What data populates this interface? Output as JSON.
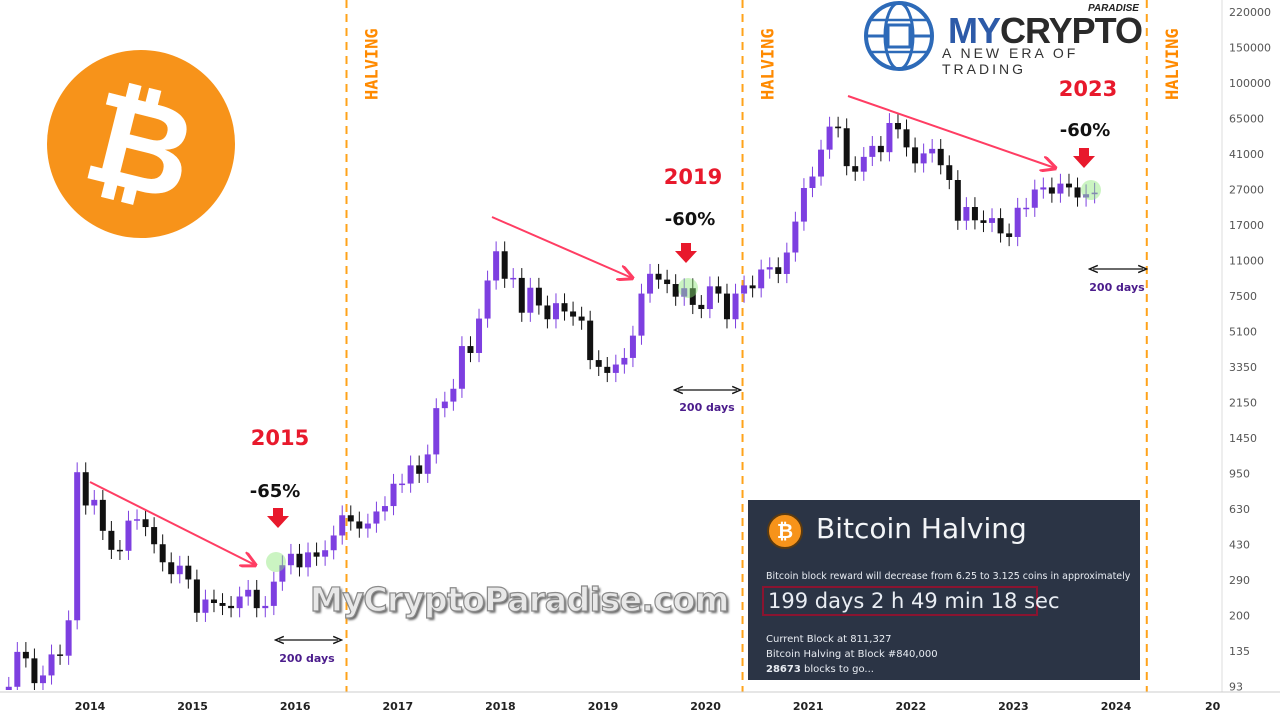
{
  "chart_data": {
    "type": "candlestick",
    "title": "",
    "y_scale": "log",
    "ylim": [
      93,
      220000
    ],
    "y_ticks": [
      "220000",
      "150000",
      "100000",
      "65000",
      "41000",
      "27000",
      "17000",
      "11000",
      "7500",
      "5100",
      "3350",
      "2150",
      "1450",
      "950",
      "630",
      "430",
      "290",
      "200",
      "135",
      "93"
    ],
    "x_ticks": [
      "2014",
      "2015",
      "2016",
      "2017",
      "2018",
      "2019",
      "2020",
      "2021",
      "2022",
      "2023",
      "2024",
      "20"
    ],
    "colors": {
      "up": "#7d3fe0",
      "down": "#111111",
      "halving_line": "#ffa31a",
      "trend_arrow": "#ff3d63",
      "drop_arrow": "#e8192c"
    },
    "series_start": "2013-03",
    "interval": "monthly",
    "closes": [
      93,
      139,
      129,
      97,
      106,
      135,
      133,
      200,
      1100,
      750,
      800,
      560,
      450,
      445,
      630,
      640,
      585,
      480,
      390,
      340,
      375,
      320,
      218,
      254,
      244,
      236,
      230,
      263,
      284,
      230,
      236,
      312,
      377,
      430,
      368,
      437,
      416,
      448,
      531,
      670,
      624,
      575,
      609,
      700,
      745,
      963,
      965,
      1190,
      1080,
      1350,
      2300,
      2480,
      2875,
      4700,
      4340,
      6450,
      10000,
      14000,
      10200,
      10300,
      6900,
      9200,
      7500,
      6400,
      7700,
      7000,
      6600,
      6300,
      4000,
      3700,
      3450,
      3800,
      4100,
      5300,
      8600,
      10800,
      10100,
      9600,
      8300,
      9150,
      7550,
      7200,
      9350,
      8600,
      6400,
      8600,
      9450,
      9140,
      11350,
      11650,
      10780,
      13800,
      19700,
      29000,
      33100,
      45100,
      58800,
      57700,
      37300,
      35000,
      41500,
      47100,
      43800,
      61300,
      57000,
      46300,
      38500,
      43200,
      45500,
      37700,
      31800,
      19900,
      23300,
      20000,
      19400,
      20500,
      17200,
      16500,
      23100,
      23100,
      28500,
      29200,
      27200,
      30500,
      29200,
      26000,
      27000,
      27500
    ],
    "halvings": [
      {
        "date": 2016.5,
        "label": "HALVING"
      },
      {
        "date": 2020.36,
        "label": "HALVING"
      },
      {
        "date": 2024.3,
        "label": "HALVING"
      }
    ],
    "annotations": [
      {
        "year_label": "2015",
        "drop": "-65%",
        "days": "200 days"
      },
      {
        "year_label": "2019",
        "drop": "-60%",
        "days": "200 days"
      },
      {
        "year_label": "2023",
        "drop": "-60%",
        "days": "200 days"
      }
    ]
  },
  "watermark": "MyCryptoParadise.com",
  "logo": {
    "my": "MY",
    "crypto": "CRYPTO",
    "paradise": "PARADISE",
    "tagline": "A NEW ERA OF TRADING"
  },
  "info_box": {
    "coin_symbol": "₿",
    "title": "Bitcoin Halving",
    "description": "Bitcoin block reward will decrease from 6.25 to 3.125 coins in approximately",
    "countdown": "199 days 2 h 49 min 18 sec",
    "current_block": "Current Block at 811,327",
    "halving_block": "Bitcoin Halving at Block #840,000",
    "blocks_count": "28673",
    "blocks_suffix": " blocks to go..."
  }
}
